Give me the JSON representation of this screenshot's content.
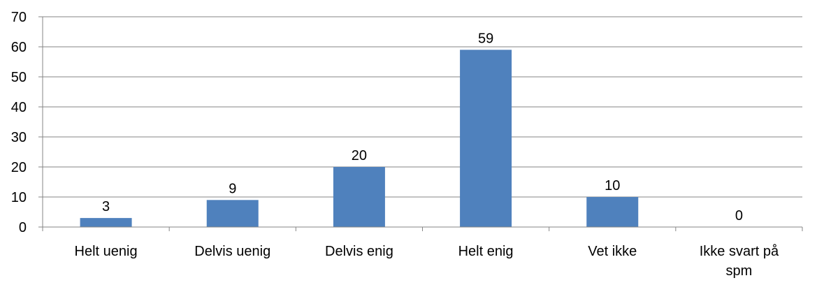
{
  "chart_data": {
    "type": "bar",
    "categories": [
      [
        "Helt uenig"
      ],
      [
        "Delvis uenig"
      ],
      [
        "Delvis enig"
      ],
      [
        "Helt enig"
      ],
      [
        "Vet ikke"
      ],
      [
        "Ikke svart på",
        "spm"
      ]
    ],
    "values": [
      3,
      9,
      20,
      59,
      10,
      0
    ],
    "y_ticks": [
      "0",
      "10",
      "20",
      "30",
      "40",
      "50",
      "60",
      "70"
    ],
    "ylim": [
      0,
      70
    ],
    "grid": true,
    "legend": "none",
    "colors": {
      "bar": "#4f81bd",
      "grid": "#868686",
      "axis": "#868686",
      "text": "#000000"
    }
  }
}
